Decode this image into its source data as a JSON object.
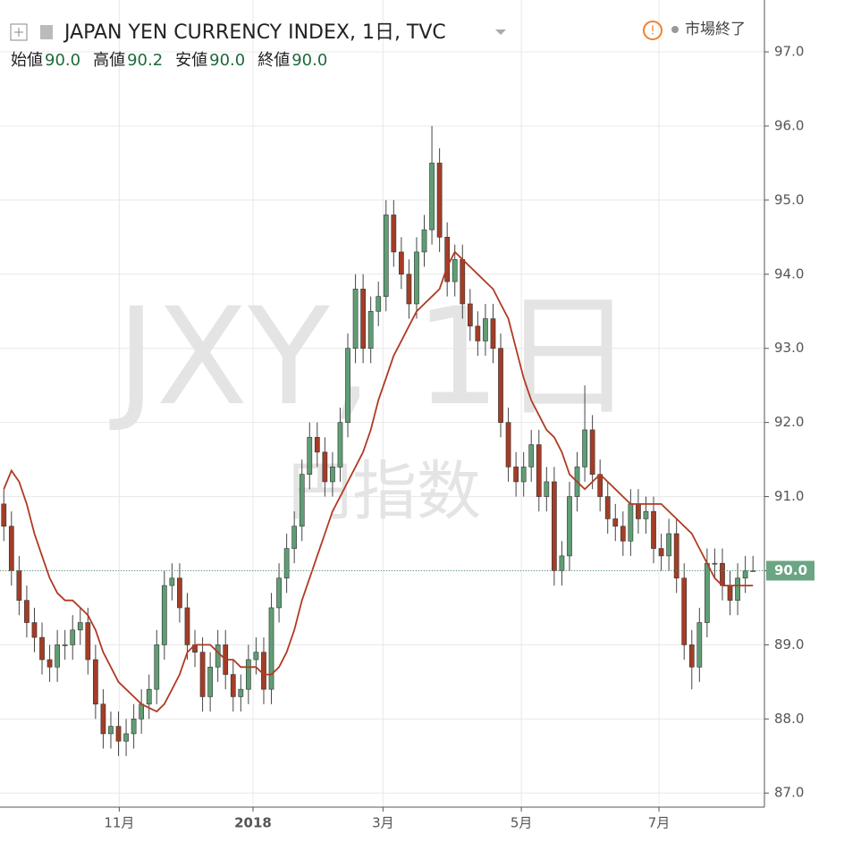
{
  "chart_data": {
    "type": "candlestick",
    "title": "JAPAN YEN CURRENCY INDEX, 1日, TVC",
    "status": "市場終了",
    "watermark": "JXY, 1日",
    "watermark_sub": "円指数",
    "ohlc_names": [
      "始値",
      "高値",
      "安値",
      "終値"
    ],
    "ohlc_values": [
      "90.0",
      "90.2",
      "90.0",
      "90.0"
    ],
    "last_price": {
      "value": 90,
      "label": "90.0"
    },
    "up_color": "#5f9e74",
    "down_color": "#a43d26",
    "ma_color": "#b03a22",
    "open": [
      90.9,
      90.6,
      90.0,
      89.6,
      89.3,
      89.1,
      88.8,
      88.7,
      89.0,
      89.0,
      89.2,
      89.3,
      88.8,
      88.2,
      87.8,
      87.9,
      87.7,
      87.8,
      88.0,
      88.2,
      88.4,
      89.0,
      89.8,
      89.9,
      89.5,
      89.0,
      88.9,
      88.3,
      88.7,
      89.0,
      88.6,
      88.3,
      88.4,
      88.8,
      88.9,
      88.4,
      89.5,
      89.9,
      90.3,
      90.6,
      91.3,
      91.8,
      91.6,
      91.2,
      91.4,
      92.0,
      93.0,
      93.8,
      93.0,
      93.5,
      93.7,
      94.8,
      94.3,
      94.0,
      93.6,
      94.3,
      94.6,
      95.5,
      94.5,
      93.9,
      94.2,
      93.6,
      93.3,
      93.1,
      93.4,
      93.0,
      92.0,
      91.4,
      91.2,
      91.4,
      91.7,
      91.0,
      91.2,
      90.0,
      90.2,
      91.0,
      91.4,
      91.9,
      91.3,
      91.0,
      90.7,
      90.6,
      90.4,
      90.9,
      90.7,
      90.8,
      90.3,
      90.2,
      90.5,
      89.9,
      89.0,
      88.7,
      89.3,
      90.1,
      90.1,
      89.8,
      89.6,
      89.9,
      90.0
    ],
    "high": [
      91.1,
      90.8,
      90.2,
      89.8,
      89.5,
      89.3,
      89.0,
      89.2,
      89.2,
      89.4,
      89.5,
      89.5,
      89.0,
      88.4,
      88.1,
      88.1,
      88.0,
      88.2,
      88.4,
      88.6,
      89.2,
      90.0,
      90.1,
      90.1,
      89.7,
      89.2,
      89.1,
      88.9,
      89.2,
      89.2,
      88.8,
      88.6,
      89.0,
      89.1,
      89.1,
      89.7,
      90.1,
      90.5,
      90.8,
      91.5,
      92.0,
      92.0,
      91.8,
      91.6,
      92.2,
      93.2,
      94.0,
      94.0,
      93.7,
      93.9,
      95.0,
      95.0,
      94.5,
      94.2,
      94.5,
      94.8,
      96.0,
      95.7,
      94.7,
      94.4,
      94.4,
      93.8,
      93.5,
      93.6,
      93.6,
      93.2,
      92.2,
      91.6,
      91.6,
      91.9,
      91.9,
      91.4,
      91.4,
      90.4,
      91.2,
      91.6,
      92.5,
      92.1,
      91.5,
      91.2,
      90.9,
      90.8,
      91.1,
      91.1,
      91.0,
      91.0,
      90.5,
      90.7,
      90.7,
      90.1,
      89.2,
      89.5,
      90.3,
      90.3,
      90.3,
      90.0,
      90.1,
      90.2,
      90.2
    ],
    "low": [
      90.4,
      89.8,
      89.4,
      89.1,
      88.9,
      88.6,
      88.5,
      88.5,
      88.8,
      88.8,
      89.0,
      88.6,
      88.0,
      87.6,
      87.6,
      87.5,
      87.5,
      87.6,
      87.8,
      88.0,
      88.2,
      88.8,
      89.6,
      89.3,
      88.8,
      88.7,
      88.1,
      88.1,
      88.5,
      88.4,
      88.1,
      88.1,
      88.2,
      88.6,
      88.2,
      88.2,
      89.3,
      89.7,
      90.1,
      90.4,
      91.1,
      91.4,
      91.0,
      91.0,
      91.2,
      91.8,
      92.8,
      92.8,
      92.8,
      93.3,
      93.5,
      94.1,
      93.8,
      93.4,
      93.4,
      94.1,
      94.4,
      94.3,
      93.7,
      93.7,
      93.4,
      93.1,
      92.9,
      92.9,
      92.8,
      91.8,
      91.2,
      91.0,
      91.0,
      91.2,
      90.8,
      90.8,
      89.8,
      89.8,
      90.0,
      90.8,
      91.2,
      91.1,
      90.8,
      90.5,
      90.4,
      90.2,
      90.2,
      90.5,
      90.5,
      90.1,
      90.0,
      90.0,
      89.7,
      88.8,
      88.4,
      88.5,
      89.1,
      89.9,
      89.6,
      89.4,
      89.4,
      89.7,
      90.0
    ],
    "close": [
      90.6,
      90.0,
      89.6,
      89.3,
      89.1,
      88.8,
      88.7,
      89.0,
      89.0,
      89.2,
      89.3,
      88.8,
      88.2,
      87.8,
      87.9,
      87.7,
      87.8,
      88.0,
      88.2,
      88.4,
      89.0,
      89.8,
      89.9,
      89.5,
      89.0,
      88.9,
      88.3,
      88.7,
      89.0,
      88.6,
      88.3,
      88.4,
      88.8,
      88.9,
      88.4,
      89.5,
      89.9,
      90.3,
      90.6,
      91.3,
      91.8,
      91.6,
      91.2,
      91.4,
      92.0,
      93.0,
      93.8,
      93.0,
      93.5,
      93.7,
      94.8,
      94.3,
      94.0,
      93.6,
      94.3,
      94.6,
      95.5,
      94.5,
      93.9,
      94.2,
      93.6,
      93.3,
      93.1,
      93.4,
      93.0,
      92.0,
      91.4,
      91.2,
      91.4,
      91.7,
      91.0,
      91.2,
      90.0,
      90.2,
      91.0,
      91.4,
      91.9,
      91.3,
      91.0,
      90.7,
      90.6,
      90.4,
      90.9,
      90.7,
      90.8,
      90.3,
      90.2,
      90.5,
      89.9,
      89.0,
      88.7,
      89.3,
      90.1,
      90.1,
      89.8,
      89.6,
      89.9,
      90.0,
      90.0
    ],
    "ma": [
      91.1,
      91.35,
      91.2,
      90.9,
      90.5,
      90.2,
      89.9,
      89.7,
      89.6,
      89.6,
      89.5,
      89.4,
      89.2,
      88.9,
      88.7,
      88.5,
      88.4,
      88.3,
      88.2,
      88.15,
      88.1,
      88.2,
      88.4,
      88.6,
      88.9,
      89.0,
      89.0,
      89.0,
      88.9,
      88.8,
      88.8,
      88.7,
      88.7,
      88.7,
      88.6,
      88.6,
      88.7,
      88.9,
      89.2,
      89.6,
      89.9,
      90.2,
      90.5,
      90.8,
      91.0,
      91.2,
      91.4,
      91.6,
      91.9,
      92.3,
      92.6,
      92.9,
      93.1,
      93.3,
      93.5,
      93.6,
      93.7,
      93.8,
      94.1,
      94.3,
      94.2,
      94.1,
      94.0,
      93.9,
      93.8,
      93.6,
      93.4,
      93.0,
      92.6,
      92.3,
      92.1,
      91.9,
      91.8,
      91.6,
      91.3,
      91.2,
      91.1,
      91.2,
      91.3,
      91.2,
      91.1,
      91.0,
      90.9,
      90.9,
      90.9,
      90.9,
      90.9,
      90.8,
      90.7,
      90.6,
      90.5,
      90.3,
      90.1,
      89.9,
      89.8,
      89.8,
      89.8,
      89.8,
      89.8
    ],
    "xlim": [
      0,
      100
    ],
    "xticks": [
      {
        "value": 15.6,
        "label": "11月"
      },
      {
        "value": 33.1,
        "label": "2018"
      },
      {
        "value": 50.1,
        "label": "3月"
      },
      {
        "value": 68.2,
        "label": "5月"
      },
      {
        "value": 86.2,
        "label": "7月"
      }
    ],
    "ylim": [
      86.81,
      97.7
    ],
    "yticks": [
      {
        "value": 87,
        "label": "87.0"
      },
      {
        "value": 88,
        "label": "88.0"
      },
      {
        "value": 89,
        "label": "89.0"
      },
      {
        "value": 90,
        "label": "90.0"
      },
      {
        "value": 91,
        "label": "91.0"
      },
      {
        "value": 92,
        "label": "92.0"
      },
      {
        "value": 93,
        "label": "93.0"
      },
      {
        "value": 94,
        "label": "94.0"
      },
      {
        "value": 95,
        "label": "95.0"
      },
      {
        "value": 96,
        "label": "96.0"
      },
      {
        "value": 97,
        "label": "97.0"
      }
    ],
    "grid": true
  }
}
